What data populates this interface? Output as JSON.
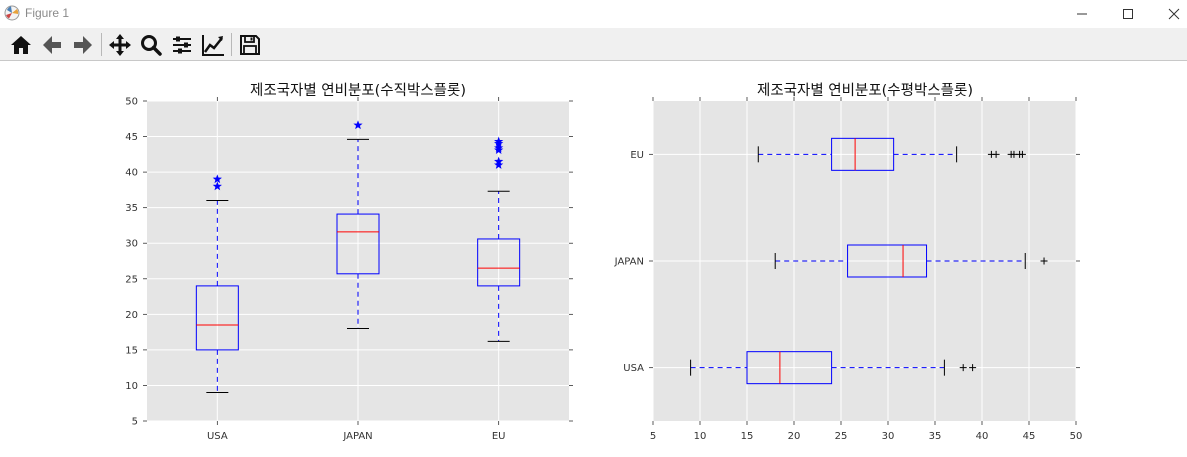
{
  "window": {
    "title": "Figure 1",
    "controls": [
      "minimize-icon",
      "maximize-icon",
      "close-icon"
    ]
  },
  "toolbar": {
    "tools": [
      "home-icon",
      "back-arrow-icon",
      "forward-arrow-icon",
      "pan-icon",
      "zoom-icon",
      "subplots-config-icon",
      "edit-axis-icon",
      "save-icon"
    ]
  },
  "colors": {
    "axes_bg": "#e5e5e5",
    "grid": "#ffffff",
    "box": "#0000ff",
    "median": "#ff0000",
    "whisker_cap": "#000000"
  },
  "chart_data": [
    {
      "type": "boxplot",
      "orientation": "vertical",
      "title": "제조국자별 연비분포(수직박스플롯)",
      "categories": [
        "USA",
        "JAPAN",
        "EU"
      ],
      "ylim": [
        5,
        50
      ],
      "yticks": [
        "5",
        "10",
        "15",
        "20",
        "25",
        "30",
        "35",
        "40",
        "45",
        "50"
      ],
      "grid": true,
      "flier_marker": "star",
      "boxes": [
        {
          "category": "USA",
          "whisker_low": 9.0,
          "q1": 15.0,
          "median": 18.5,
          "q3": 24.0,
          "whisker_high": 36.0,
          "outliers": [
            38.0,
            39.0
          ]
        },
        {
          "category": "JAPAN",
          "whisker_low": 18.0,
          "q1": 25.7,
          "median": 31.6,
          "q3": 34.1,
          "whisker_high": 44.6,
          "outliers": [
            46.6
          ]
        },
        {
          "category": "EU",
          "whisker_low": 16.2,
          "q1": 24.0,
          "median": 26.5,
          "q3": 30.6,
          "whisker_high": 37.3,
          "outliers": [
            41.0,
            41.5,
            43.1,
            43.4,
            44.0,
            44.3
          ]
        }
      ]
    },
    {
      "type": "boxplot",
      "orientation": "horizontal",
      "title": "제조국자별 연비분포(수평박스플롯)",
      "categories": [
        "USA",
        "JAPAN",
        "EU"
      ],
      "xlim": [
        5,
        50
      ],
      "xticks": [
        "5",
        "10",
        "15",
        "20",
        "25",
        "30",
        "35",
        "40",
        "45",
        "50"
      ],
      "grid": true,
      "flier_marker": "plus",
      "boxes": [
        {
          "category": "USA",
          "whisker_low": 9.0,
          "q1": 15.0,
          "median": 18.5,
          "q3": 24.0,
          "whisker_high": 36.0,
          "outliers": [
            38.0,
            39.0
          ]
        },
        {
          "category": "JAPAN",
          "whisker_low": 18.0,
          "q1": 25.7,
          "median": 31.6,
          "q3": 34.1,
          "whisker_high": 44.6,
          "outliers": [
            46.6
          ]
        },
        {
          "category": "EU",
          "whisker_low": 16.2,
          "q1": 24.0,
          "median": 26.5,
          "q3": 30.6,
          "whisker_high": 37.3,
          "outliers": [
            41.0,
            41.5,
            43.1,
            43.4,
            44.0,
            44.3
          ]
        }
      ]
    }
  ]
}
